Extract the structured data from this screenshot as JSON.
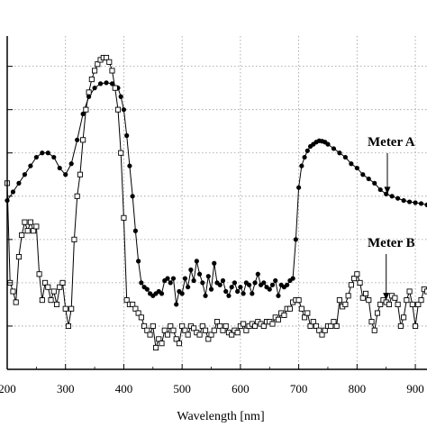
{
  "chart_data": {
    "type": "line",
    "title": "",
    "xlabel": "Wavelength [nm]",
    "ylabel": "",
    "xlim": [
      200,
      920
    ],
    "ylim": [
      0,
      7.7
    ],
    "x_ticks": [
      200,
      300,
      400,
      500,
      600,
      700,
      800,
      900
    ],
    "x_tick_labels": [
      "200",
      "300",
      "400",
      "500",
      "600",
      "700",
      "800",
      "900"
    ],
    "y_minor_ticks": [
      1,
      2,
      3,
      4,
      5,
      6,
      7
    ],
    "grid": true,
    "annotations": [
      {
        "text": "Meter A",
        "series": "Meter A",
        "arrow_to": [
          852,
          4.05
        ]
      },
      {
        "text": "Meter B",
        "series": "Meter B",
        "arrow_to": [
          850,
          1.6
        ]
      }
    ],
    "series": [
      {
        "name": "Meter A",
        "marker": "filled-circle",
        "x": [
          200,
          210,
          220,
          230,
          240,
          250,
          260,
          270,
          280,
          290,
          300,
          310,
          320,
          330,
          340,
          350,
          360,
          370,
          380,
          390,
          395,
          400,
          405,
          410,
          415,
          420,
          425,
          430,
          435,
          440,
          445,
          450,
          455,
          460,
          465,
          470,
          475,
          480,
          485,
          490,
          495,
          500,
          505,
          510,
          515,
          520,
          525,
          530,
          535,
          540,
          545,
          550,
          555,
          560,
          565,
          570,
          575,
          580,
          585,
          590,
          595,
          600,
          605,
          610,
          615,
          620,
          625,
          630,
          635,
          640,
          645,
          650,
          655,
          660,
          665,
          670,
          675,
          680,
          685,
          690,
          695,
          700,
          705,
          710,
          715,
          720,
          725,
          730,
          735,
          740,
          745,
          750,
          760,
          770,
          780,
          790,
          800,
          810,
          820,
          830,
          840,
          850,
          860,
          870,
          880,
          890,
          900,
          910,
          920
        ],
        "y": [
          3.9,
          4.1,
          4.3,
          4.5,
          4.7,
          4.9,
          5.0,
          5.0,
          4.9,
          4.65,
          4.5,
          4.75,
          5.3,
          5.9,
          6.3,
          6.5,
          6.6,
          6.62,
          6.6,
          6.5,
          6.3,
          6.0,
          5.4,
          4.7,
          4.0,
          3.2,
          2.5,
          2.0,
          1.9,
          1.85,
          1.75,
          1.7,
          1.75,
          1.8,
          1.75,
          2.05,
          2.1,
          2.0,
          2.1,
          1.5,
          1.8,
          1.75,
          2.1,
          1.9,
          2.3,
          2.05,
          2.5,
          2.2,
          2.0,
          1.7,
          2.15,
          1.85,
          2.45,
          2.0,
          1.95,
          2.05,
          1.8,
          1.7,
          1.9,
          2.0,
          1.8,
          1.9,
          1.75,
          2.0,
          1.95,
          1.75,
          2.0,
          2.2,
          1.95,
          2.0,
          1.9,
          1.85,
          1.95,
          2.05,
          1.7,
          1.95,
          1.9,
          1.95,
          2.05,
          2.1,
          3.0,
          4.2,
          4.7,
          4.9,
          5.05,
          5.15,
          5.2,
          5.25,
          5.28,
          5.27,
          5.25,
          5.2,
          5.1,
          5.0,
          4.9,
          4.75,
          4.65,
          4.5,
          4.4,
          4.3,
          4.15,
          4.05,
          4.0,
          3.95,
          3.9,
          3.87,
          3.85,
          3.83,
          3.8
        ]
      },
      {
        "name": "Meter B",
        "marker": "open-square",
        "x": [
          200,
          205,
          210,
          215,
          220,
          225,
          230,
          235,
          240,
          245,
          250,
          255,
          260,
          265,
          270,
          275,
          280,
          285,
          290,
          295,
          300,
          305,
          310,
          315,
          320,
          325,
          330,
          335,
          340,
          345,
          350,
          355,
          360,
          365,
          370,
          375,
          380,
          385,
          390,
          395,
          400,
          405,
          410,
          415,
          420,
          425,
          430,
          435,
          440,
          445,
          450,
          455,
          460,
          465,
          470,
          475,
          480,
          485,
          490,
          495,
          500,
          505,
          510,
          515,
          520,
          525,
          530,
          535,
          540,
          545,
          550,
          555,
          560,
          565,
          570,
          575,
          580,
          585,
          590,
          595,
          600,
          605,
          610,
          615,
          620,
          625,
          630,
          635,
          640,
          645,
          650,
          655,
          660,
          665,
          670,
          675,
          680,
          685,
          690,
          695,
          700,
          705,
          710,
          715,
          720,
          725,
          730,
          735,
          740,
          745,
          750,
          755,
          760,
          765,
          770,
          775,
          780,
          785,
          790,
          795,
          800,
          805,
          810,
          815,
          820,
          825,
          830,
          835,
          840,
          845,
          850,
          855,
          860,
          865,
          870,
          875,
          880,
          885,
          890,
          895,
          900,
          905,
          910,
          915,
          920
        ],
        "y": [
          4.3,
          2.0,
          1.8,
          1.55,
          2.6,
          3.1,
          3.4,
          3.2,
          3.4,
          3.2,
          3.3,
          2.2,
          1.6,
          2.0,
          1.9,
          1.6,
          1.8,
          1.5,
          1.9,
          2.0,
          1.4,
          1.0,
          1.4,
          3.0,
          4.0,
          4.5,
          5.3,
          6.0,
          6.4,
          6.7,
          6.9,
          7.05,
          7.15,
          7.2,
          7.2,
          7.1,
          6.9,
          6.5,
          6.0,
          5.0,
          3.5,
          1.6,
          1.5,
          1.5,
          1.4,
          1.3,
          1.2,
          1.0,
          0.9,
          0.8,
          1.0,
          0.5,
          0.7,
          0.6,
          0.9,
          0.8,
          1.0,
          0.9,
          0.7,
          0.6,
          1.0,
          0.9,
          0.8,
          1.0,
          0.95,
          0.85,
          0.8,
          1.0,
          0.9,
          0.7,
          0.8,
          0.9,
          1.1,
          1.0,
          0.9,
          1.0,
          0.85,
          0.8,
          0.9,
          0.85,
          1.0,
          1.05,
          0.9,
          1.0,
          1.05,
          1.0,
          1.1,
          1.05,
          1.0,
          1.1,
          1.1,
          1.05,
          1.2,
          1.15,
          1.3,
          1.25,
          1.4,
          1.4,
          1.55,
          1.6,
          1.6,
          1.4,
          1.2,
          1.3,
          1.0,
          1.1,
          1.0,
          0.9,
          0.8,
          0.9,
          1.0,
          1.0,
          1.1,
          1.0,
          1.6,
          1.45,
          1.5,
          1.7,
          1.95,
          2.1,
          2.2,
          2.0,
          1.65,
          1.75,
          1.6,
          1.1,
          0.9,
          1.3,
          1.5,
          1.6,
          1.55,
          1.5,
          1.7,
          1.65,
          1.5,
          1.0,
          1.2,
          1.6,
          1.8,
          1.5,
          1.0,
          1.5,
          1.6,
          1.85,
          1.8
        ]
      }
    ]
  }
}
